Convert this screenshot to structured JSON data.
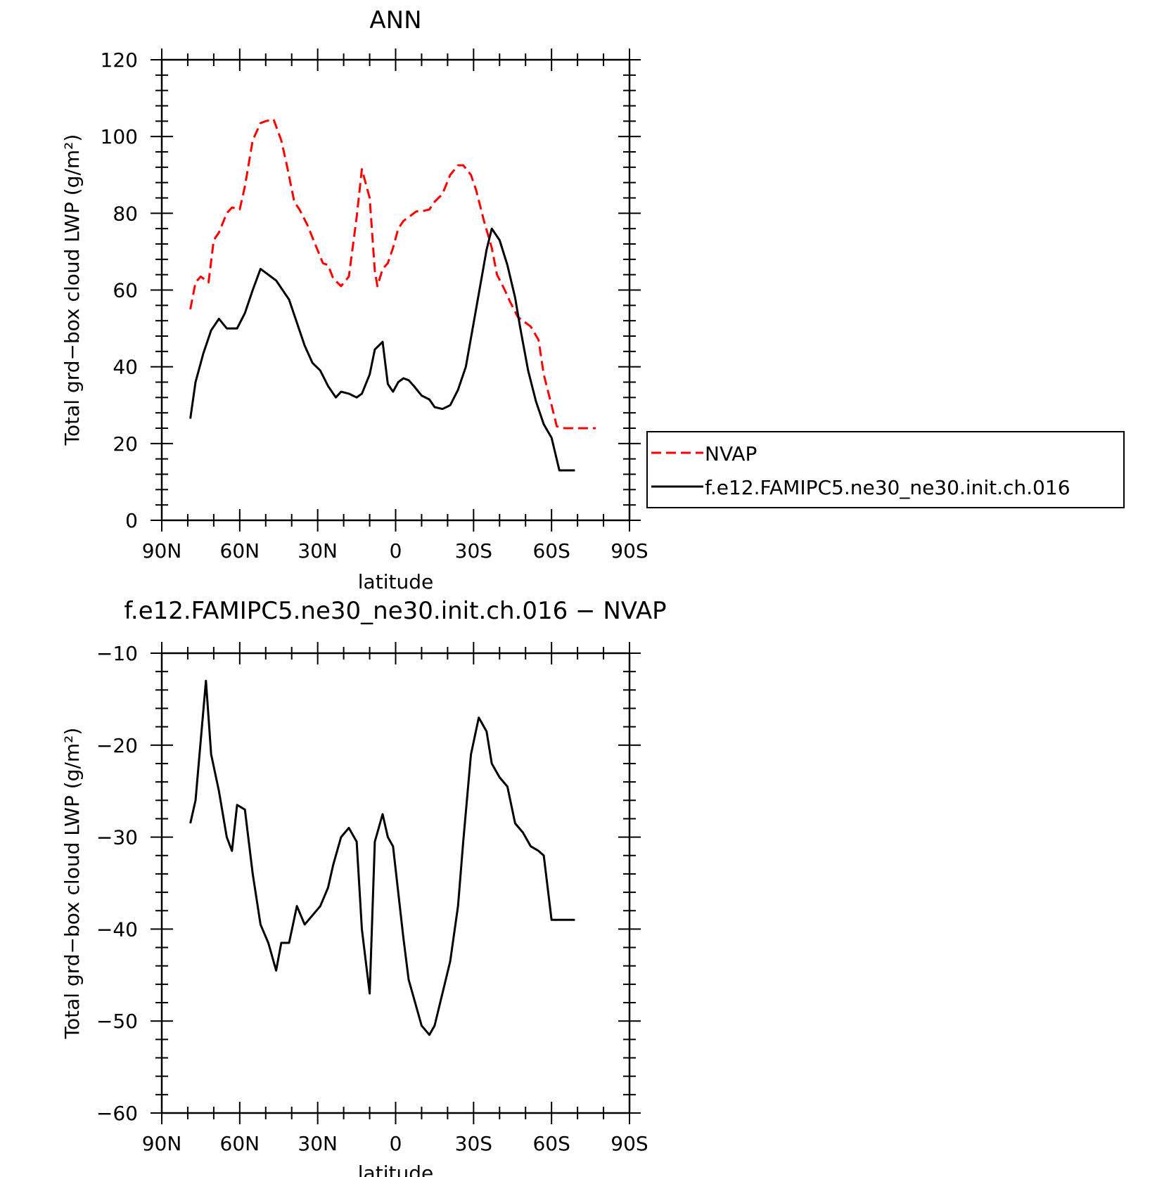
{
  "chart_data": [
    {
      "type": "line",
      "title": "ANN",
      "xlabel": "latitude",
      "ylabel": "Total grd−box cloud LWP (g/m²)",
      "xlim": [
        -90,
        90
      ],
      "ylim": [
        0,
        120
      ],
      "x_ticks": [
        -90,
        -60,
        -30,
        0,
        30,
        60,
        90
      ],
      "x_tick_labels": [
        "90N",
        "60N",
        "30N",
        "0",
        "30S",
        "60S",
        "90S"
      ],
      "y_ticks": [
        0,
        20,
        40,
        60,
        80,
        100,
        120
      ],
      "y_tick_labels": [
        "0",
        "20",
        "40",
        "60",
        "80",
        "100",
        "120"
      ],
      "grid": false,
      "legend": "outside-right",
      "series": [
        {
          "name": "NVAP",
          "color": "#ff0000",
          "style": "dashed",
          "x": [
            -79,
            -77,
            -75,
            -72,
            -70,
            -68,
            -65,
            -63,
            -60,
            -58,
            -55,
            -52,
            -50,
            -47,
            -44,
            -42,
            -39,
            -37,
            -34,
            -31,
            -28,
            -26,
            -24,
            -21,
            -18,
            -15,
            -13,
            -10,
            -8,
            -7,
            -5,
            -3,
            -1,
            1,
            3,
            5,
            8,
            10,
            13,
            15,
            18,
            21,
            24,
            26,
            29,
            31,
            34,
            37,
            39,
            42,
            44,
            47,
            49,
            52,
            55,
            57,
            60,
            62,
            65,
            68,
            70,
            72,
            73,
            75,
            76,
            77
          ],
          "values": [
            55,
            62,
            63.5,
            62,
            73,
            75,
            80,
            81.5,
            81,
            87,
            99,
            103.5,
            104,
            104.5,
            99,
            93,
            83,
            81,
            77,
            72,
            67,
            66.5,
            63,
            61,
            63.5,
            79,
            91.5,
            84,
            65,
            61,
            65.5,
            67,
            71,
            76,
            78,
            79,
            80.5,
            80.5,
            81,
            83,
            85,
            90,
            92.5,
            92.5,
            90,
            86,
            78,
            71,
            64,
            60,
            57,
            53,
            52,
            50.5,
            47,
            38,
            30,
            24.5,
            24,
            24,
            24,
            24,
            24,
            24,
            24,
            24
          ]
        },
        {
          "name": "f.e12.FAMIPC5.ne30_ne30.init.ch.016",
          "color": "#000000",
          "style": "solid",
          "x": [
            -79,
            -77,
            -74,
            -71,
            -68,
            -65,
            -61,
            -58,
            -55,
            -52,
            -49,
            -46,
            -43,
            -41,
            -38,
            -35,
            -32,
            -29,
            -26,
            -23,
            -21,
            -18,
            -15,
            -13,
            -10,
            -8,
            -5,
            -3,
            -1,
            1,
            3,
            5,
            7,
            10,
            13,
            15,
            18,
            21,
            24,
            27,
            29,
            32,
            35,
            37,
            40,
            43,
            46,
            48,
            51,
            54,
            57,
            60,
            63,
            66,
            69
          ],
          "values": [
            26.5,
            36,
            43.5,
            49.5,
            52.5,
            50,
            50,
            54,
            60,
            65.5,
            64,
            62.5,
            59.5,
            57.5,
            51.5,
            45.5,
            41,
            39,
            35,
            32,
            33.5,
            33,
            32,
            33,
            38,
            44.5,
            46.5,
            35.5,
            33.5,
            36,
            37,
            36.5,
            35,
            32.5,
            31.5,
            29.5,
            29,
            30,
            34,
            40,
            47.5,
            59,
            70.5,
            76,
            73,
            66.5,
            58,
            50,
            39,
            31,
            25,
            21.5,
            13,
            13,
            13
          ]
        }
      ]
    },
    {
      "type": "line",
      "title": "f.e12.FAMIPC5.ne30_ne30.init.ch.016 − NVAP",
      "xlabel": "latitude",
      "ylabel": "Total grd−box cloud LWP (g/m²)",
      "xlim": [
        -90,
        90
      ],
      "ylim": [
        -60,
        -10
      ],
      "x_ticks": [
        -90,
        -60,
        -30,
        0,
        30,
        60,
        90
      ],
      "x_tick_labels": [
        "90N",
        "60N",
        "30N",
        "0",
        "30S",
        "60S",
        "90S"
      ],
      "y_ticks": [
        -60,
        -50,
        -40,
        -30,
        -20,
        -10
      ],
      "y_tick_labels": [
        "−60",
        "−50",
        "−40",
        "−30",
        "−20",
        "−10"
      ],
      "grid": false,
      "series": [
        {
          "color": "#000000",
          "style": "solid",
          "x": [
            -79,
            -77,
            -75,
            -73,
            -71,
            -68,
            -65,
            -63,
            -61,
            -58,
            -55,
            -52,
            -49,
            -46,
            -44,
            -41,
            -38,
            -35,
            -32,
            -29,
            -26,
            -24,
            -21,
            -18,
            -15,
            -13,
            -10,
            -8,
            -5,
            -3,
            -1,
            1,
            3,
            5,
            7,
            10,
            13,
            15,
            18,
            21,
            24,
            26,
            29,
            32,
            35,
            37,
            40,
            43,
            46,
            49,
            52,
            55,
            57,
            60,
            63,
            66,
            69
          ],
          "values": [
            -28.5,
            -26,
            -19.5,
            -13,
            -21,
            -25,
            -30,
            -31.5,
            -26.5,
            -27,
            -34,
            -39.5,
            -41.5,
            -44.5,
            -41.5,
            -41.5,
            -37.5,
            -39.5,
            -38.5,
            -37.5,
            -35.5,
            -33,
            -30,
            -29,
            -30.5,
            -40,
            -47,
            -30.5,
            -27.5,
            -30,
            -31,
            -36,
            -41,
            -45.5,
            -47.5,
            -50.5,
            -51.5,
            -50.5,
            -47,
            -43.5,
            -37.5,
            -30.5,
            -21,
            -17,
            -18.5,
            -22,
            -23.5,
            -24.5,
            -28.5,
            -29.5,
            -31,
            -31.5,
            -32,
            -39,
            -39,
            -39,
            -39
          ]
        }
      ]
    }
  ]
}
